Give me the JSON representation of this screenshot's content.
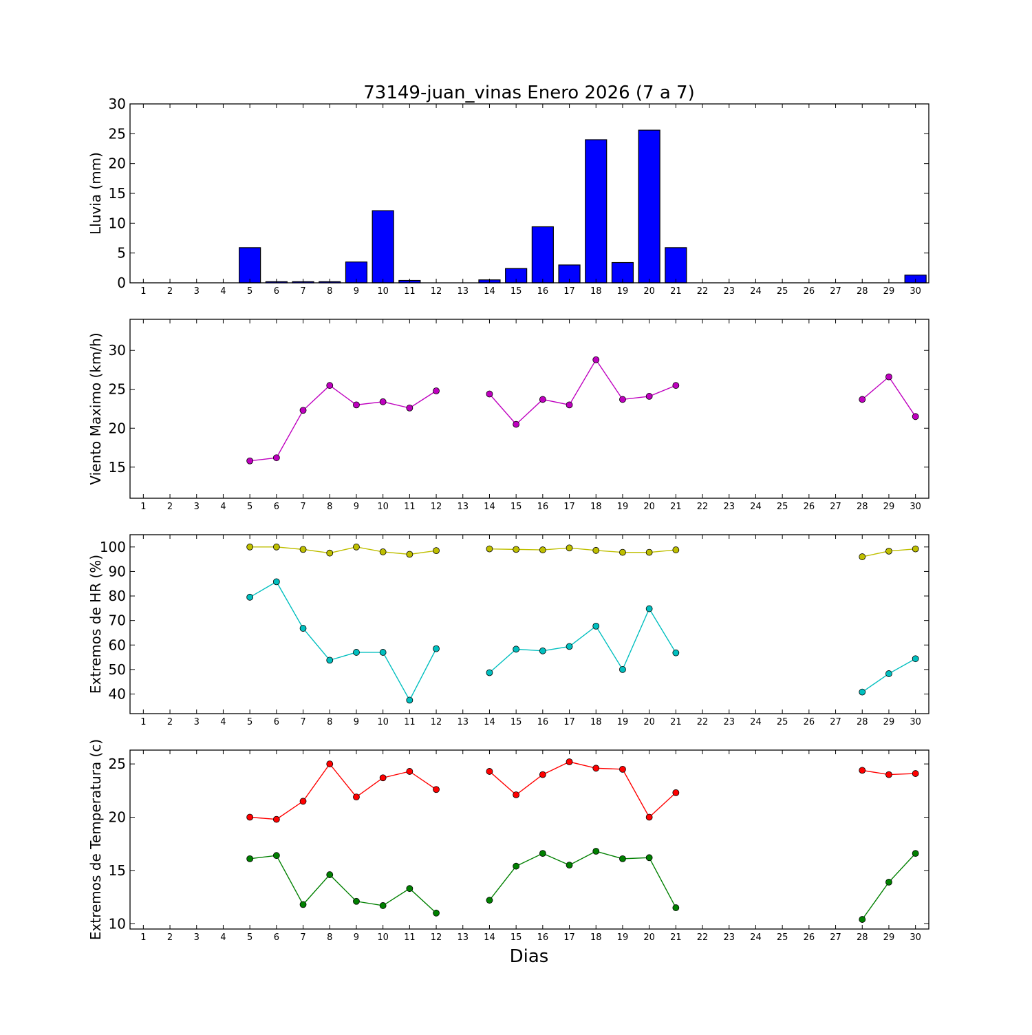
{
  "chart_data": {
    "title": "73149-juan_vinas Enero 2026  (7 a 7)",
    "xlabel": "Dias",
    "x": [
      1,
      2,
      3,
      4,
      5,
      6,
      7,
      8,
      9,
      10,
      11,
      12,
      13,
      14,
      15,
      16,
      17,
      18,
      19,
      20,
      21,
      22,
      23,
      24,
      25,
      26,
      27,
      28,
      29,
      30
    ],
    "xlim": [
      0.5,
      30.5
    ],
    "panels": [
      {
        "type": "bar",
        "ylabel": "Lluvia (mm)",
        "ylim": [
          0,
          30
        ],
        "yticks": [
          0,
          5,
          10,
          15,
          20,
          25,
          30
        ],
        "series": [
          {
            "color": "#0000ff",
            "values": [
              0,
              0,
              0,
              0,
              5.9,
              0.2,
              0.2,
              0.2,
              3.5,
              12.1,
              0.4,
              0,
              0,
              0.5,
              2.4,
              9.4,
              3.0,
              24.0,
              3.4,
              25.6,
              5.9,
              0,
              0,
              0,
              0,
              0,
              0,
              0,
              0,
              1.3
            ]
          }
        ]
      },
      {
        "type": "line",
        "ylabel": "Viento Maximo (km/h)",
        "ylim": [
          11,
          34
        ],
        "yticks": [
          15,
          20,
          25,
          30
        ],
        "series": [
          {
            "color": "#bf00bf",
            "values": [
              null,
              null,
              null,
              null,
              15.8,
              16.2,
              22.3,
              25.5,
              23.0,
              23.4,
              22.6,
              24.8,
              null,
              24.4,
              20.5,
              23.7,
              23.0,
              28.8,
              23.7,
              24.1,
              25.5,
              null,
              null,
              null,
              null,
              null,
              null,
              23.7,
              26.6,
              21.5
            ]
          }
        ]
      },
      {
        "type": "line",
        "ylabel": "Extremos de HR (%)",
        "ylim": [
          32,
          105
        ],
        "yticks": [
          40,
          50,
          60,
          70,
          80,
          90,
          100
        ],
        "series": [
          {
            "color": "#bfbf00",
            "values": [
              null,
              null,
              null,
              null,
              100,
              100,
              99,
              97.5,
              100,
              98,
              97,
              98.5,
              null,
              99.2,
              99,
              98.8,
              99.6,
              98.6,
              97.8,
              97.8,
              98.8,
              null,
              null,
              null,
              null,
              null,
              null,
              96,
              98.3,
              99.2
            ]
          },
          {
            "color": "#00bfbf",
            "values": [
              null,
              null,
              null,
              null,
              79.5,
              85.8,
              66.8,
              53.8,
              57,
              57,
              37.5,
              58.5,
              null,
              48.7,
              58.3,
              57.6,
              59.4,
              67.7,
              50,
              74.8,
              56.8,
              null,
              null,
              null,
              null,
              null,
              null,
              40.8,
              48.3,
              54.4
            ]
          }
        ]
      },
      {
        "type": "line",
        "ylabel": "Extremos de Temperatura (c)",
        "ylim": [
          9.5,
          26.3
        ],
        "yticks": [
          10,
          15,
          20,
          25
        ],
        "series": [
          {
            "color": "#ff0000",
            "values": [
              null,
              null,
              null,
              null,
              20,
              19.8,
              21.5,
              25.0,
              21.9,
              23.7,
              24.3,
              22.6,
              null,
              24.3,
              22.1,
              24.0,
              25.2,
              24.6,
              24.5,
              20,
              22.3,
              null,
              null,
              null,
              null,
              null,
              null,
              24.4,
              24.0,
              24.1
            ]
          },
          {
            "color": "#008000",
            "values": [
              null,
              null,
              null,
              null,
              16.1,
              16.4,
              11.8,
              14.6,
              12.1,
              11.7,
              13.3,
              11.0,
              null,
              12.2,
              15.4,
              16.6,
              15.5,
              16.8,
              16.1,
              16.2,
              11.5,
              null,
              null,
              null,
              null,
              null,
              null,
              10.4,
              13.9,
              16.6
            ]
          }
        ]
      }
    ]
  }
}
